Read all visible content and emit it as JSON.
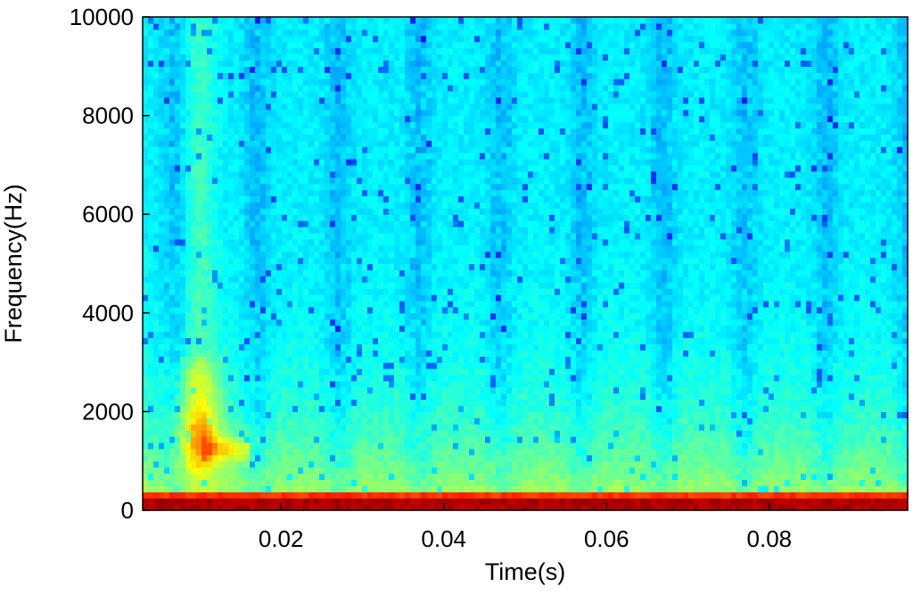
{
  "chart_data": {
    "type": "heatmap",
    "subtype": "spectrogram",
    "title": "",
    "xlabel": "Time(s)",
    "ylabel": "Frequency(Hz)",
    "xlim": [
      0.003,
      0.097
    ],
    "ylim": [
      0,
      10000
    ],
    "x_ticks": [
      {
        "value": 0.02,
        "label": "0.02"
      },
      {
        "value": 0.04,
        "label": "0.04"
      },
      {
        "value": 0.06,
        "label": "0.06"
      },
      {
        "value": 0.08,
        "label": "0.08"
      }
    ],
    "y_ticks": [
      {
        "value": 0,
        "label": "0"
      },
      {
        "value": 2000,
        "label": "2000"
      },
      {
        "value": 4000,
        "label": "4000"
      },
      {
        "value": 6000,
        "label": "6000"
      },
      {
        "value": 8000,
        "label": "8000"
      },
      {
        "value": 10000,
        "label": "10000"
      }
    ],
    "colormap": "jet",
    "grid": false,
    "legend": "none",
    "features": {
      "low_frequency_band_hz": [
        0,
        400
      ],
      "broadband_event_time_s": 0.01,
      "event_peak_frequency_hz": [
        1000,
        2000
      ],
      "event_tail_end_time_s": 0.016,
      "event_tail_frequency_hz": 1250,
      "harmonic_line_spacing_hz": 250,
      "periodic_modulation_period_s": 0.01,
      "periodic_modulation_offset_s": 0.007
    }
  }
}
